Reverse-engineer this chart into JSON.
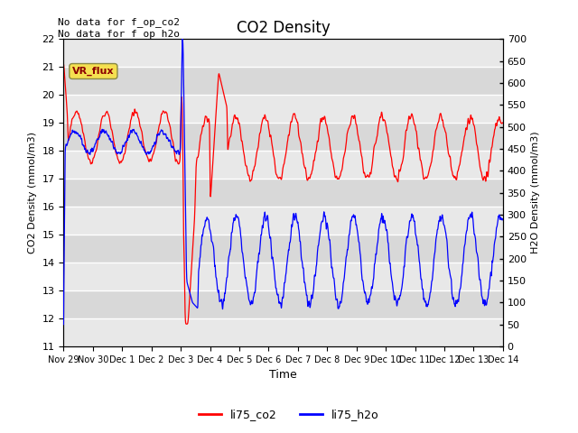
{
  "title": "CO2 Density",
  "xlabel": "Time",
  "ylabel_left": "CO2 Density (mmol/m3)",
  "ylabel_right": "H2O Density (mmol/m3)",
  "annotation_text": "No data for f_op_co2\nNo data for f_op_h2o",
  "legend_box_label": "VR_flux",
  "legend_entries": [
    "li75_co2",
    "li75_h2o"
  ],
  "legend_colors": [
    "red",
    "blue"
  ],
  "ylim_left": [
    11.0,
    22.0
  ],
  "ylim_right": [
    0,
    700
  ],
  "yticks_left": [
    11.0,
    12.0,
    13.0,
    14.0,
    15.0,
    16.0,
    17.0,
    18.0,
    19.0,
    20.0,
    21.0,
    22.0
  ],
  "yticks_right": [
    0,
    50,
    100,
    150,
    200,
    250,
    300,
    350,
    400,
    450,
    500,
    550,
    600,
    650,
    700
  ],
  "band_colors": [
    "#e8e8e8",
    "#d8d8d8"
  ],
  "co2_color": "red",
  "h2o_color": "blue",
  "n_points": 3000
}
